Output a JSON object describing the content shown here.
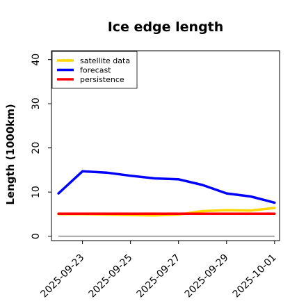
{
  "chart_data": {
    "type": "line",
    "title": "Ice edge length",
    "ylabel": "Length (1000km)",
    "xlabel": "",
    "ylim": [
      -1,
      42
    ],
    "y_ticks": [
      "0",
      "10",
      "20",
      "30",
      "40"
    ],
    "x_range": [
      "2025-09-21T17:00",
      "2025-10-01T05:00"
    ],
    "x_tick_labels": [
      "2025-09-23",
      "2025-09-25",
      "2025-09-27",
      "2025-09-29",
      "2025-10-01"
    ],
    "x_tick_label_colors": [
      "#228b22",
      "#000000",
      "#000000",
      "#000000",
      "#000000"
    ],
    "grid": false,
    "legend_placement": "top-left",
    "baseline": {
      "y": 0,
      "color": "#808080"
    },
    "x": [
      "2025-09-22",
      "2025-09-23",
      "2025-09-24",
      "2025-09-25",
      "2025-09-26",
      "2025-09-27",
      "2025-09-28",
      "2025-09-29",
      "2025-09-30",
      "2025-10-01"
    ],
    "series": [
      {
        "name": "satellite data",
        "color": "#ffd700",
        "values": [
          5.0,
          5.0,
          4.9,
          4.8,
          4.7,
          4.9,
          5.7,
          5.9,
          5.8,
          6.4
        ]
      },
      {
        "name": "forecast",
        "color": "#0000ff",
        "values": [
          9.7,
          14.7,
          14.4,
          13.7,
          13.1,
          12.9,
          11.6,
          9.7,
          9.0,
          7.6
        ]
      },
      {
        "name": "persistence",
        "color": "#ff0000",
        "values": [
          5.1,
          5.1,
          5.1,
          5.1,
          5.1,
          5.1,
          5.1,
          5.1,
          5.1,
          5.1
        ]
      }
    ]
  }
}
